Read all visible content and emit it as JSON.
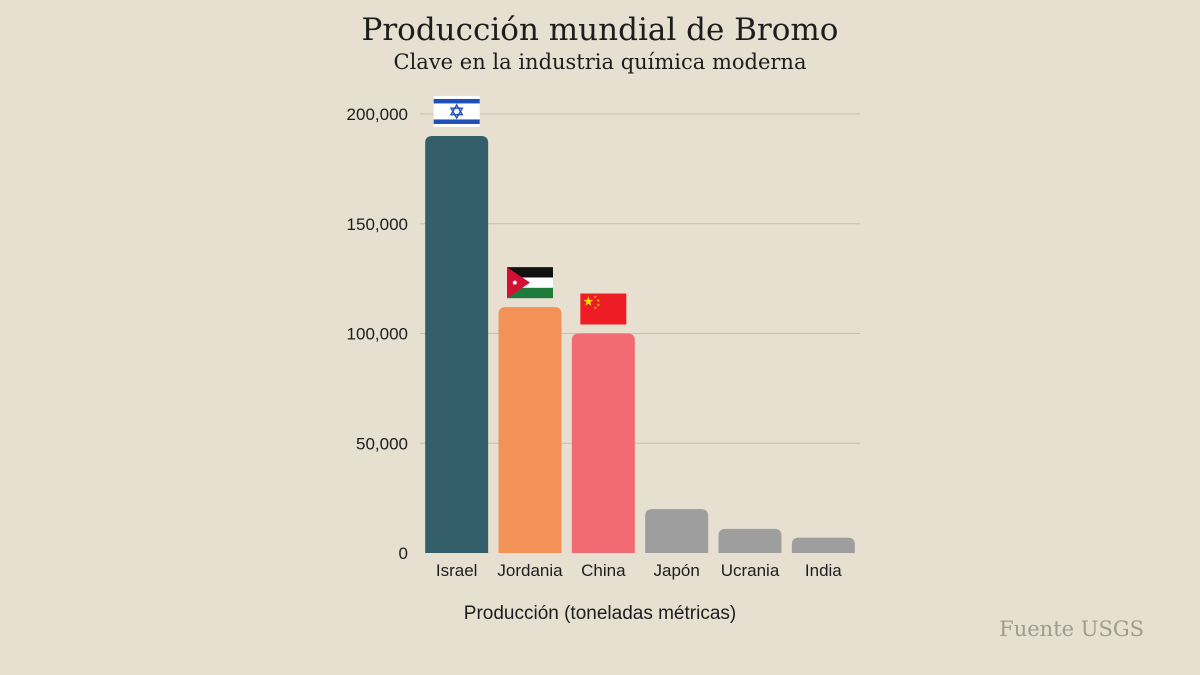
{
  "header": {
    "title": "Producción mundial de Bromo",
    "subtitle": "Clave en la industria química moderna"
  },
  "footer": {
    "source": "Fuente USGS"
  },
  "chart_data": {
    "type": "bar",
    "title": "Producción mundial de Bromo",
    "subtitle": "Clave en la industria química moderna",
    "xlabel": "Producción (toneladas métricas)",
    "ylabel": "",
    "categories": [
      "Israel",
      "Jordania",
      "China",
      "Japón",
      "Ucrania",
      "India"
    ],
    "values": [
      190000,
      112000,
      100000,
      20000,
      11000,
      7000
    ],
    "colors": [
      "#345e6a",
      "#f29256",
      "#f26b73",
      "#9e9e9e",
      "#9e9e9e",
      "#9e9e9e"
    ],
    "flags": [
      "israel-flag",
      "jordan-flag",
      "china-flag",
      null,
      null,
      null
    ],
    "ylim": [
      0,
      200000
    ],
    "yticks": [
      0,
      50000,
      100000,
      150000,
      200000
    ],
    "ytick_labels": [
      "0",
      "50,000",
      "100,000",
      "150,000",
      "200,000"
    ],
    "grid": true,
    "legend": "none"
  }
}
